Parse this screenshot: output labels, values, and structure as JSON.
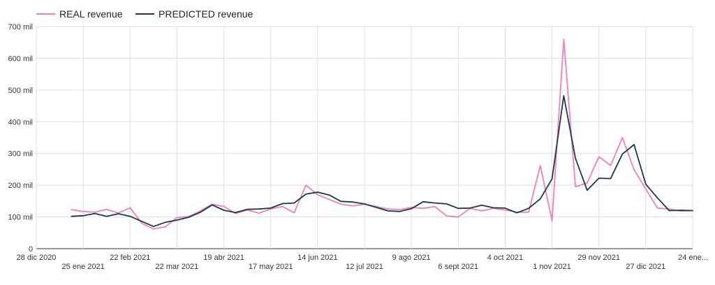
{
  "chart_data": {
    "type": "line",
    "title": "",
    "xlabel": "",
    "ylabel": "",
    "ylim": [
      0,
      700
    ],
    "grid": true,
    "legend_placement": "top-left",
    "y_ticks": [
      "0",
      "100 mil",
      "200 mil",
      "300 mil",
      "400 mil",
      "500 mil",
      "600 mil",
      "700 mil"
    ],
    "x_ticks": [
      "28 dic 2020",
      "25 ene 2021",
      "22 feb 2021",
      "22 mar 2021",
      "19 abr 2021",
      "17 may 2021",
      "14 jun 2021",
      "12 jul 2021",
      "9 ago 2021",
      "6 sept 2021",
      "4 oct 2021",
      "1 nov 2021",
      "29 nov 2021",
      "27 dic 2021",
      "24 ene..."
    ],
    "x_start": "2020-12-28",
    "x_end": "2022-01-24",
    "x": [
      "2021-01-18",
      "2021-01-25",
      "2021-02-01",
      "2021-02-08",
      "2021-02-15",
      "2021-02-22",
      "2021-03-01",
      "2021-03-08",
      "2021-03-15",
      "2021-03-22",
      "2021-03-29",
      "2021-04-05",
      "2021-04-12",
      "2021-04-19",
      "2021-04-26",
      "2021-05-03",
      "2021-05-10",
      "2021-05-17",
      "2021-05-24",
      "2021-05-31",
      "2021-06-07",
      "2021-06-14",
      "2021-06-21",
      "2021-06-28",
      "2021-07-05",
      "2021-07-12",
      "2021-07-19",
      "2021-07-26",
      "2021-08-02",
      "2021-08-09",
      "2021-08-16",
      "2021-08-23",
      "2021-08-30",
      "2021-09-06",
      "2021-09-13",
      "2021-09-20",
      "2021-09-27",
      "2021-10-04",
      "2021-10-11",
      "2021-10-18",
      "2021-10-25",
      "2021-11-01",
      "2021-11-08",
      "2021-11-15",
      "2021-11-22",
      "2021-11-29",
      "2021-12-06",
      "2021-12-13",
      "2021-12-20",
      "2021-12-27",
      "2022-01-03",
      "2022-01-10",
      "2022-01-17",
      "2022-01-24"
    ],
    "series": [
      {
        "name": "REAL revenue",
        "color": "#f57fb2",
        "values": [
          123,
          117,
          115,
          124,
          112,
          129,
          80,
          62,
          69,
          98,
          101,
          119,
          140,
          133,
          111,
          122,
          112,
          125,
          133,
          113,
          200,
          170,
          155,
          140,
          135,
          140,
          133,
          125,
          123,
          130,
          127,
          133,
          103,
          100,
          127,
          119,
          127,
          122,
          115,
          115,
          262,
          88,
          660,
          195,
          207,
          290,
          262,
          350,
          249,
          188,
          128,
          125,
          118,
          120
        ]
      },
      {
        "name": "PREDICTED revenue",
        "color": "#173753",
        "values": [
          102,
          104,
          111,
          102,
          110,
          102,
          86,
          70,
          83,
          90,
          99,
          115,
          138,
          121,
          114,
          124,
          125,
          128,
          142,
          144,
          172,
          178,
          169,
          149,
          147,
          141,
          130,
          119,
          117,
          126,
          148,
          144,
          141,
          127,
          128,
          137,
          129,
          128,
          113,
          127,
          157,
          220,
          482,
          285,
          184,
          222,
          221,
          298,
          328,
          203,
          160,
          120,
          121,
          120
        ]
      }
    ]
  }
}
